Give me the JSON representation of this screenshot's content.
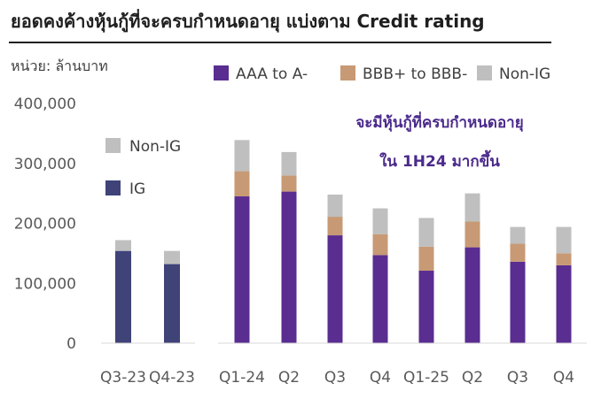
{
  "title": "ยอดคงค้างหุ้นกู้ที่จะครบกำหนดอายุ แบ่งตาม Credit rating",
  "unit_label": "หน่วย: ล้านบาท",
  "colors": {
    "aaa": "#5a2d91",
    "bbb": "#c79a75",
    "nonig": "#bfbfbf",
    "ig": "#3f4378"
  },
  "chart_data": [
    {
      "type": "bar",
      "stacked": true,
      "categories": [
        "Q3-23",
        "Q4-23"
      ],
      "series": [
        {
          "name": "IG",
          "color_key": "ig",
          "values": [
            154000,
            132000
          ]
        },
        {
          "name": "Non-IG",
          "color_key": "nonig",
          "values": [
            18000,
            22000
          ]
        }
      ],
      "ylim": [
        0,
        400000
      ],
      "yticks": [
        "0",
        "100,000",
        "200,000",
        "300,000",
        "400,000"
      ],
      "legend_position": "top-left-inside"
    },
    {
      "type": "bar",
      "stacked": true,
      "categories": [
        "Q1-24",
        "Q2",
        "Q3",
        "Q4",
        "Q1-25",
        "Q2",
        "Q3",
        "Q4"
      ],
      "series": [
        {
          "name": "AAA to A-",
          "color_key": "aaa",
          "values": [
            245000,
            253000,
            180000,
            147000,
            121000,
            160000,
            136000,
            130000
          ]
        },
        {
          "name": "BBB+ to BBB-",
          "color_key": "bbb",
          "values": [
            42000,
            27000,
            31000,
            35000,
            40000,
            43000,
            30000,
            20000
          ]
        },
        {
          "name": "Non-IG",
          "color_key": "nonig",
          "values": [
            52000,
            39000,
            37000,
            43000,
            48000,
            47000,
            28000,
            44000
          ]
        }
      ],
      "ylim": [
        0,
        400000
      ],
      "annotation": [
        "จะมีหุ้นกู้ที่ครบกำหนดอายุ",
        "ใน 1H24 มากขึ้น"
      ],
      "legend_position": "top"
    }
  ]
}
